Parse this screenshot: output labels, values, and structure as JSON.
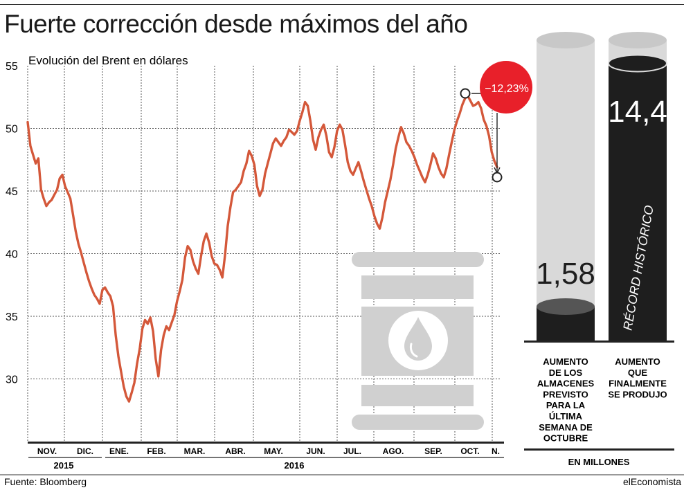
{
  "title": "Fuerte corrección desde máximos del año",
  "subtitle": "Evolución del Brent en dólares",
  "source": "Fuente: Bloomberg",
  "brand": "elEconomista",
  "colors": {
    "line": "#d4583a",
    "badge": "#e8202a",
    "bar_dark": "#1e1e1e",
    "bar_light": "#d9d9d9",
    "barrel": "#d0d0d0"
  },
  "icons": [
    "oil-barrel-icon",
    "oil-drop-icon"
  ],
  "chart_data": [
    {
      "type": "line",
      "subtitle": "Evolución del Brent en dólares",
      "ylim": [
        25,
        55
      ],
      "yticks": [
        30,
        35,
        40,
        45,
        50,
        55
      ],
      "grid": true,
      "month_labels": [
        "NOV.",
        "DIC.",
        "ENE.",
        "FEB.",
        "MAR.",
        "ABR.",
        "MAY.",
        "JUN.",
        "JUL.",
        "AGO.",
        "SEP.",
        "OCT.",
        "N."
      ],
      "year_labels": [
        "2015",
        "2016"
      ],
      "annotation": "−12,23%",
      "values": [
        50.5,
        48.6,
        47.9,
        47.2,
        47.6,
        45.1,
        44.4,
        43.8,
        44.1,
        44.3,
        44.7,
        45.1,
        46.0,
        46.3,
        45.4,
        44.9,
        44.4,
        43.1,
        41.8,
        40.8,
        40.1,
        39.3,
        38.5,
        37.8,
        37.2,
        36.7,
        36.4,
        36.0,
        37.1,
        37.3,
        36.9,
        36.6,
        35.8,
        33.5,
        31.8,
        30.6,
        29.4,
        28.6,
        28.2,
        28.9,
        29.7,
        31.2,
        32.4,
        34.0,
        34.7,
        34.4,
        34.9,
        33.8,
        31.6,
        30.2,
        32.3,
        33.5,
        34.2,
        33.9,
        34.5,
        35.1,
        36.2,
        37.0,
        37.9,
        39.7,
        40.6,
        40.3,
        39.4,
        38.8,
        38.4,
        39.8,
        41.0,
        41.6,
        40.9,
        39.8,
        39.2,
        39.1,
        38.7,
        38.1,
        39.9,
        42.2,
        43.7,
        44.9,
        45.1,
        45.4,
        45.7,
        46.6,
        47.2,
        48.2,
        47.8,
        47.1,
        45.4,
        44.6,
        45.1,
        46.4,
        47.2,
        48.0,
        48.8,
        49.2,
        48.9,
        48.6,
        49.0,
        49.3,
        49.9,
        49.7,
        49.5,
        49.8,
        50.6,
        51.3,
        52.1,
        51.8,
        50.6,
        49.1,
        48.3,
        49.3,
        49.9,
        50.3,
        49.4,
        48.1,
        47.7,
        48.5,
        49.8,
        50.3,
        49.9,
        48.7,
        47.3,
        46.6,
        46.3,
        46.8,
        47.3,
        46.6,
        45.8,
        45.1,
        44.4,
        43.8,
        43.0,
        42.4,
        42.0,
        42.9,
        44.1,
        45.0,
        45.9,
        47.1,
        48.4,
        49.3,
        50.1,
        49.6,
        48.9,
        48.6,
        48.2,
        47.7,
        47.1,
        46.6,
        46.1,
        45.7,
        46.3,
        47.1,
        48.0,
        47.6,
        46.9,
        46.4,
        46.1,
        46.8,
        47.9,
        48.9,
        49.9,
        50.6,
        51.2,
        51.9,
        52.4,
        52.6,
        52.2,
        51.8,
        51.9,
        52.1,
        51.6,
        50.7,
        50.2,
        49.4,
        48.1,
        47.4,
        46.9
      ]
    },
    {
      "type": "bar",
      "categories": [
        "AUMENTO DE LOS ALMACENES PREVISTO PARA LA ÚLTIMA SEMANA DE OCTUBRE",
        "AUMENTO QUE FINALMENTE SE PRODUJO"
      ],
      "values": [
        1.58,
        14.4
      ],
      "value_labels": [
        "1,58",
        "14,4"
      ],
      "annotation": "RÉCORD HISTÓRICO",
      "unit_label": "EN MILLONES"
    }
  ],
  "bars": {
    "category_lines": [
      [
        "AUMENTO",
        "DE LOS",
        "ALMACENES",
        "PREVISTO",
        "PARA LA",
        "ÚLTIMA",
        "SEMANA DE",
        "OCTUBRE"
      ],
      [
        "AUMENTO",
        "QUE",
        "FINALMENTE",
        "SE PRODUJO"
      ]
    ]
  }
}
